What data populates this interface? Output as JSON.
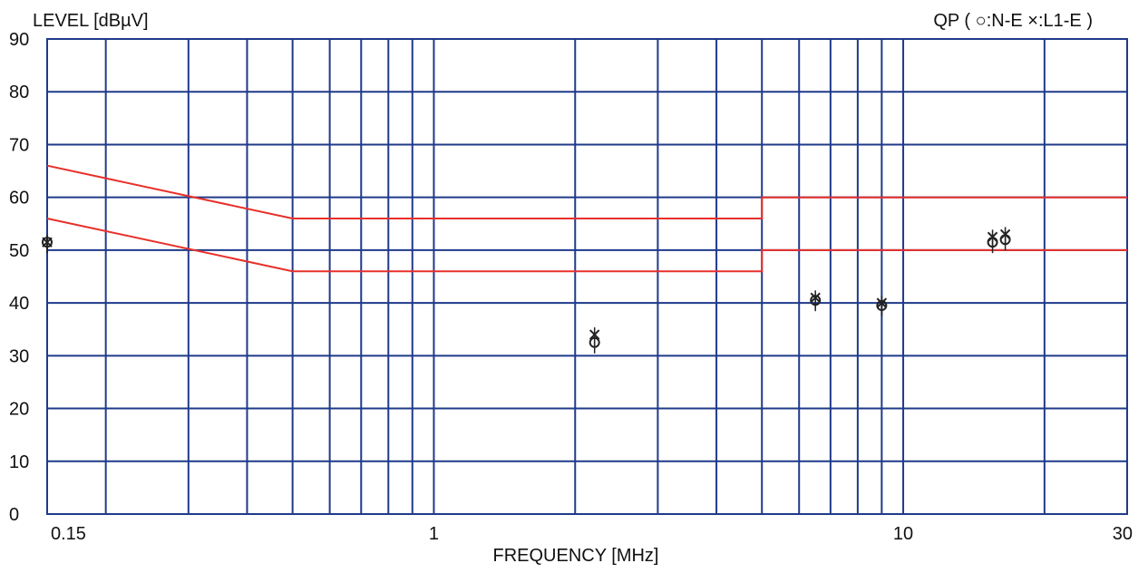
{
  "chart_data": {
    "type": "scatter",
    "ylabel": "LEVEL [dBµV]",
    "xlabel": "FREQUENCY [MHz]",
    "legend_text": "QP ( ○:N-E  ×:L1-E  )",
    "legend_position": "top-right",
    "x_scale": "log",
    "xlim": [
      0.15,
      30
    ],
    "ylim": [
      0,
      90
    ],
    "y_ticks": [
      0,
      10,
      20,
      30,
      40,
      50,
      60,
      70,
      80,
      90
    ],
    "x_tick_labels": [
      {
        "value": 0.15,
        "label": "0.15"
      },
      {
        "value": 1,
        "label": "1"
      },
      {
        "value": 10,
        "label": "10"
      },
      {
        "value": 30,
        "label": "30"
      }
    ],
    "x_gridlines": [
      0.15,
      0.2,
      0.3,
      0.4,
      0.5,
      0.6,
      0.7,
      0.8,
      0.9,
      1,
      2,
      3,
      4,
      5,
      6,
      7,
      8,
      9,
      10,
      20,
      30
    ],
    "grid": true,
    "colors": {
      "grid": "#1f3a8a",
      "limit": "#e8302a",
      "marker": "#222222",
      "text": "#111111"
    },
    "limit_lines": [
      {
        "points": [
          [
            0.15,
            66
          ],
          [
            0.5,
            56
          ],
          [
            5,
            56
          ],
          [
            5,
            60
          ],
          [
            30,
            60
          ]
        ]
      },
      {
        "points": [
          [
            0.15,
            56
          ],
          [
            0.5,
            46
          ],
          [
            5,
            46
          ],
          [
            5,
            50
          ],
          [
            30,
            50
          ]
        ]
      }
    ],
    "series": [
      {
        "name": "N-E",
        "marker": "circle",
        "points": [
          [
            0.15,
            51.5
          ],
          [
            2.2,
            32.5
          ],
          [
            6.5,
            40.5
          ],
          [
            9.0,
            39.5
          ],
          [
            15.5,
            51.5
          ],
          [
            16.5,
            52
          ]
        ]
      },
      {
        "name": "L1-E",
        "marker": "x",
        "points": [
          [
            0.15,
            51.5
          ],
          [
            2.2,
            34
          ],
          [
            6.5,
            41
          ],
          [
            9.0,
            40
          ],
          [
            15.5,
            52.5
          ],
          [
            16.5,
            53
          ]
        ]
      }
    ]
  }
}
